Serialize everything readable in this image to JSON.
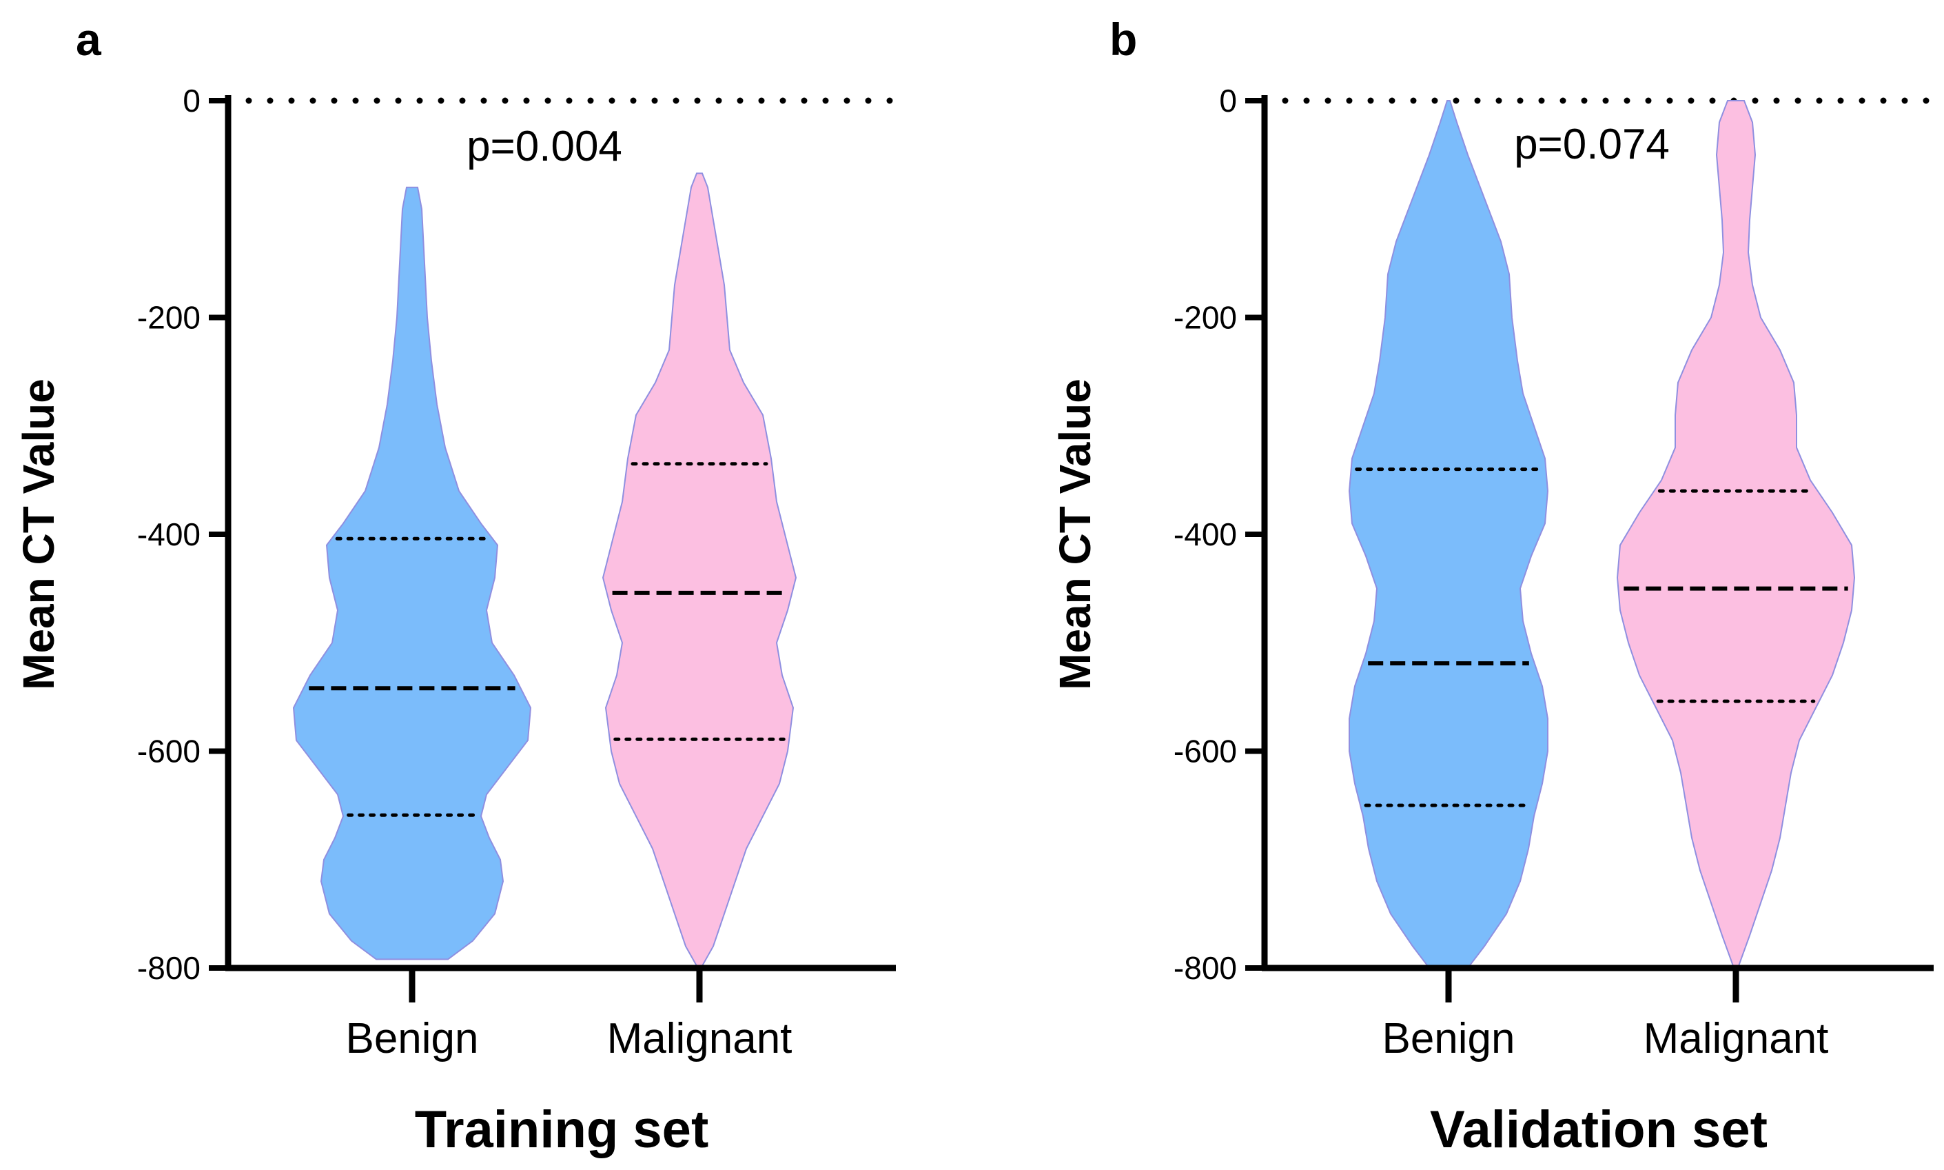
{
  "chart_data": [
    {
      "panel": "a",
      "type": "violin",
      "xlabel": "Training set",
      "ylabel": "Mean CT Value",
      "ylim": [
        -800,
        0
      ],
      "yticks": [
        0,
        -200,
        -400,
        -600,
        -800
      ],
      "ytick_labels": [
        "0",
        "-200",
        "-400",
        "-600",
        "-800"
      ],
      "reference_line": 0,
      "annotation": "p=0.004",
      "categories": [
        "Benign",
        "Malignant"
      ],
      "series": [
        {
          "category": "Benign",
          "color": "#7bbcfb",
          "min": -792,
          "max": -80,
          "q1": -659,
          "median": -542,
          "q3": -404,
          "density": [
            [
              -792,
              0.13
            ],
            [
              -775,
              0.22
            ],
            [
              -750,
              0.3
            ],
            [
              -720,
              0.33
            ],
            [
              -700,
              0.32
            ],
            [
              -680,
              0.28
            ],
            [
              -660,
              0.25
            ],
            [
              -640,
              0.27
            ],
            [
              -610,
              0.36
            ],
            [
              -590,
              0.42
            ],
            [
              -560,
              0.43
            ],
            [
              -530,
              0.37
            ],
            [
              -500,
              0.29
            ],
            [
              -470,
              0.27
            ],
            [
              -440,
              0.3
            ],
            [
              -410,
              0.31
            ],
            [
              -390,
              0.25
            ],
            [
              -360,
              0.17
            ],
            [
              -320,
              0.12
            ],
            [
              -280,
              0.09
            ],
            [
              -240,
              0.07
            ],
            [
              -200,
              0.055
            ],
            [
              -150,
              0.045
            ],
            [
              -100,
              0.035
            ],
            [
              -80,
              0.02
            ]
          ]
        },
        {
          "category": "Malignant",
          "color": "#fcbfe1",
          "min": -798,
          "max": -67,
          "q1": -589,
          "median": -454,
          "q3": -335,
          "density": [
            [
              -798,
              0.01
            ],
            [
              -780,
              0.05
            ],
            [
              -750,
              0.09
            ],
            [
              -720,
              0.13
            ],
            [
              -690,
              0.17
            ],
            [
              -660,
              0.23
            ],
            [
              -630,
              0.29
            ],
            [
              -600,
              0.32
            ],
            [
              -560,
              0.34
            ],
            [
              -530,
              0.3
            ],
            [
              -500,
              0.28
            ],
            [
              -470,
              0.32
            ],
            [
              -440,
              0.35
            ],
            [
              -410,
              0.32
            ],
            [
              -370,
              0.28
            ],
            [
              -330,
              0.26
            ],
            [
              -290,
              0.23
            ],
            [
              -260,
              0.16
            ],
            [
              -230,
              0.11
            ],
            [
              -200,
              0.1
            ],
            [
              -170,
              0.09
            ],
            [
              -140,
              0.07
            ],
            [
              -110,
              0.05
            ],
            [
              -80,
              0.03
            ],
            [
              -67,
              0.01
            ]
          ]
        }
      ]
    },
    {
      "panel": "b",
      "type": "violin",
      "xlabel": "Validation set",
      "ylabel": "Mean CT Value",
      "ylim": [
        -800,
        0
      ],
      "yticks": [
        0,
        -200,
        -400,
        -600,
        -800
      ],
      "ytick_labels": [
        "0",
        "-200",
        "-400",
        "-600",
        "-800"
      ],
      "reference_line": 0,
      "annotation": "p=0.074",
      "categories": [
        "Benign",
        "Malignant"
      ],
      "series": [
        {
          "category": "Benign",
          "color": "#7bbcfb",
          "min": -800,
          "max": 0,
          "q1": -650,
          "median": -519,
          "q3": -340,
          "density": [
            [
              -800,
              0.07
            ],
            [
              -780,
              0.13
            ],
            [
              -750,
              0.21
            ],
            [
              -720,
              0.26
            ],
            [
              -690,
              0.29
            ],
            [
              -660,
              0.31
            ],
            [
              -630,
              0.34
            ],
            [
              -600,
              0.36
            ],
            [
              -570,
              0.36
            ],
            [
              -540,
              0.34
            ],
            [
              -510,
              0.3
            ],
            [
              -480,
              0.27
            ],
            [
              -450,
              0.26
            ],
            [
              -420,
              0.3
            ],
            [
              -390,
              0.35
            ],
            [
              -360,
              0.36
            ],
            [
              -330,
              0.35
            ],
            [
              -300,
              0.31
            ],
            [
              -270,
              0.27
            ],
            [
              -240,
              0.25
            ],
            [
              -200,
              0.23
            ],
            [
              -160,
              0.22
            ],
            [
              -130,
              0.19
            ],
            [
              -90,
              0.13
            ],
            [
              -50,
              0.07
            ],
            [
              -20,
              0.03
            ],
            [
              0,
              0.005
            ]
          ]
        },
        {
          "category": "Malignant",
          "color": "#fcbfe1",
          "min": -798,
          "max": 0,
          "q1": -554,
          "median": -450,
          "q3": -360,
          "density": [
            [
              -798,
              0.01
            ],
            [
              -770,
              0.05
            ],
            [
              -740,
              0.09
            ],
            [
              -710,
              0.13
            ],
            [
              -680,
              0.16
            ],
            [
              -650,
              0.18
            ],
            [
              -620,
              0.2
            ],
            [
              -590,
              0.23
            ],
            [
              -560,
              0.29
            ],
            [
              -530,
              0.35
            ],
            [
              -500,
              0.39
            ],
            [
              -470,
              0.42
            ],
            [
              -440,
              0.43
            ],
            [
              -410,
              0.42
            ],
            [
              -380,
              0.35
            ],
            [
              -350,
              0.27
            ],
            [
              -320,
              0.22
            ],
            [
              -290,
              0.22
            ],
            [
              -260,
              0.21
            ],
            [
              -230,
              0.16
            ],
            [
              -200,
              0.09
            ],
            [
              -170,
              0.06
            ],
            [
              -140,
              0.045
            ],
            [
              -110,
              0.05
            ],
            [
              -80,
              0.06
            ],
            [
              -50,
              0.07
            ],
            [
              -20,
              0.06
            ],
            [
              0,
              0.03
            ]
          ]
        }
      ]
    }
  ]
}
